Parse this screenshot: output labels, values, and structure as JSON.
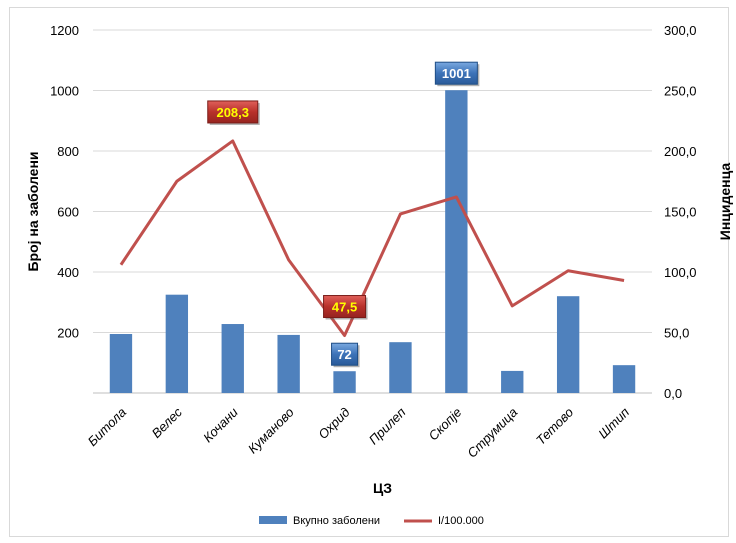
{
  "chart_data": {
    "type": "bar+line",
    "xlabel": "ЦЗ",
    "ylabel": "Број на заболени",
    "y2label": "Инциденца",
    "categories": [
      "Битола",
      "Велес",
      "Кочани",
      "Куманово",
      "Охрид",
      "Прилеп",
      "Скопје",
      "Струмица",
      "Тетово",
      "Штип"
    ],
    "ylim": [
      0,
      1200
    ],
    "yticks": [
      "200",
      "400",
      "600",
      "800",
      "1000",
      "1200"
    ],
    "y2lim": [
      0,
      300
    ],
    "y2ticks": [
      "0,0",
      "50,0",
      "100,0",
      "150,0",
      "200,0",
      "250,0",
      "300,0"
    ],
    "series": [
      {
        "name": "Вкупно заболени",
        "kind": "bar",
        "axis": "left",
        "color": "#4f81bd",
        "values": [
          195,
          325,
          228,
          192,
          72,
          168,
          1001,
          73,
          320,
          92
        ]
      },
      {
        "name": "I/100.000",
        "kind": "line",
        "axis": "right",
        "color": "#c0504d",
        "values": [
          106,
          175,
          208.3,
          110,
          47.5,
          148,
          162,
          72,
          101,
          93
        ]
      }
    ],
    "callouts": [
      {
        "text": "1001",
        "series": 0,
        "index": 6,
        "style": "blue"
      },
      {
        "text": "72",
        "series": 0,
        "index": 4,
        "style": "blue"
      },
      {
        "text": "208,3",
        "series": 1,
        "index": 2,
        "style": "red"
      },
      {
        "text": "47,5",
        "series": 1,
        "index": 4,
        "style": "red"
      }
    ],
    "legend": "bottom",
    "grid": true
  }
}
